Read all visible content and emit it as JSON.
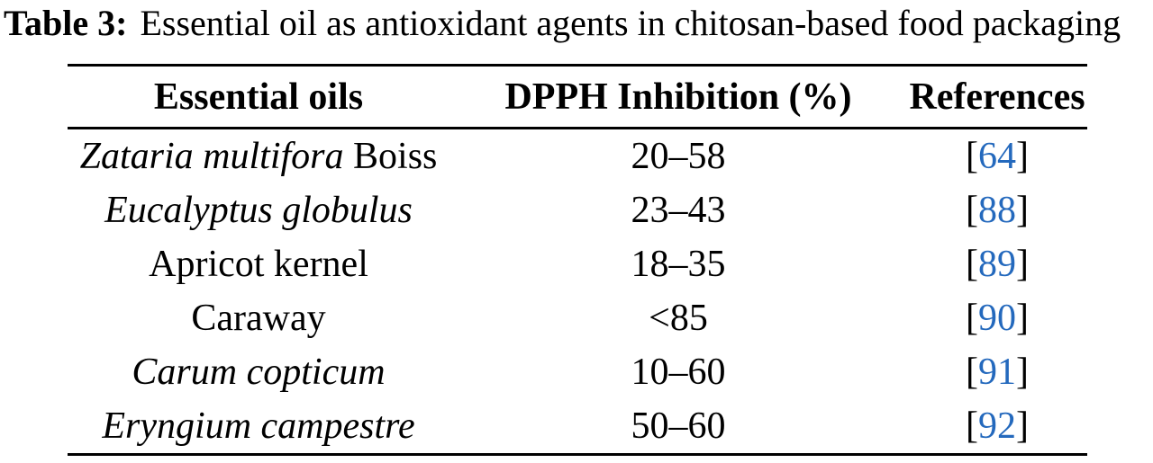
{
  "caption": {
    "label": "Table 3:",
    "text": "Essential oil as antioxidant agents in chitosan-based food packaging"
  },
  "table": {
    "headers": [
      "Essential oils",
      "DPPH Inhibition (%)",
      "References"
    ],
    "ref_open": "[",
    "ref_close": "]",
    "rows": [
      {
        "name_italic": "Zataria multifora",
        "name_regular": " Boiss",
        "dpph": "20–58",
        "ref": "64"
      },
      {
        "name_italic": "Eucalyptus globulus",
        "name_regular": "",
        "dpph": "23–43",
        "ref": "88"
      },
      {
        "name_italic": "",
        "name_regular": "Apricot kernel",
        "dpph": "18–35",
        "ref": "89"
      },
      {
        "name_italic": "",
        "name_regular": "Caraway",
        "dpph": "<85",
        "ref": "90"
      },
      {
        "name_italic": "Carum copticum",
        "name_regular": "",
        "dpph": "10–60",
        "ref": "91"
      },
      {
        "name_italic": "Eryngium campestre",
        "name_regular": "",
        "dpph": "50–60",
        "ref": "92"
      }
    ]
  },
  "colors": {
    "citation_blue": "#2469bd",
    "text": "#000000",
    "rule": "#000000",
    "background": "#ffffff"
  }
}
